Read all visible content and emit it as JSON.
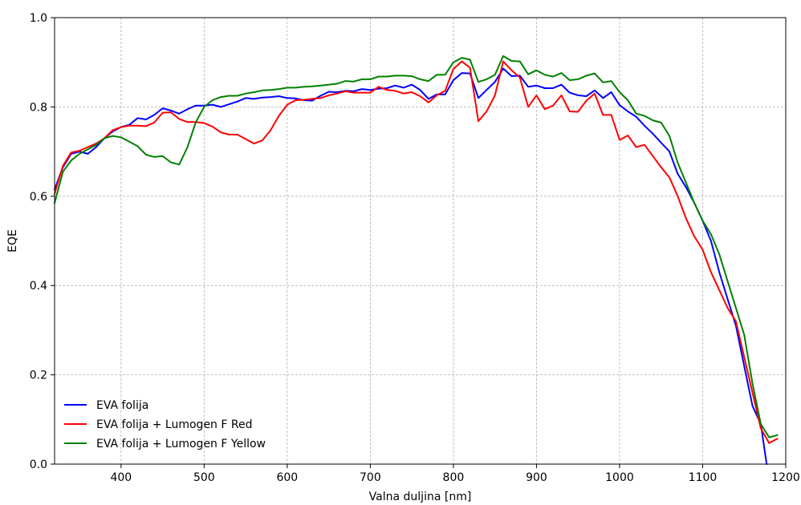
{
  "chart_data": {
    "type": "line",
    "title": "",
    "xlabel": "Valna duljina [nm]",
    "ylabel": "EQE",
    "xlim": [
      320,
      1200
    ],
    "ylim": [
      0.0,
      1.0
    ],
    "xticks": [
      400,
      500,
      600,
      700,
      800,
      900,
      1000,
      1100,
      1200
    ],
    "yticks": [
      0.0,
      0.2,
      0.4,
      0.6,
      0.8,
      1.0
    ],
    "xtick_labels": [
      "400",
      "500",
      "600",
      "700",
      "800",
      "900",
      "1000",
      "1100",
      "1200"
    ],
    "ytick_labels": [
      "0.0",
      "0.2",
      "0.4",
      "0.6",
      "0.8",
      "1.0"
    ],
    "grid": true,
    "legend_position": "bottom-left",
    "series": [
      {
        "name": "EVA folija",
        "color": "#0000ff",
        "x": [
          320,
          330,
          340,
          350,
          360,
          370,
          380,
          390,
          400,
          410,
          420,
          430,
          440,
          450,
          460,
          470,
          480,
          490,
          500,
          510,
          520,
          530,
          540,
          550,
          560,
          570,
          580,
          590,
          600,
          610,
          620,
          630,
          640,
          650,
          660,
          670,
          680,
          690,
          700,
          710,
          720,
          730,
          740,
          750,
          760,
          770,
          780,
          790,
          800,
          810,
          820,
          830,
          840,
          850,
          860,
          870,
          880,
          890,
          900,
          910,
          920,
          930,
          940,
          950,
          960,
          970,
          980,
          990,
          1000,
          1010,
          1020,
          1030,
          1040,
          1050,
          1060,
          1070,
          1080,
          1090,
          1100,
          1110,
          1120,
          1130,
          1140,
          1150,
          1160,
          1170,
          1177
        ],
        "y": [
          0.615,
          0.665,
          0.695,
          0.7,
          0.695,
          0.71,
          0.73,
          0.745,
          0.755,
          0.76,
          0.775,
          0.772,
          0.782,
          0.797,
          0.792,
          0.785,
          0.795,
          0.803,
          0.803,
          0.805,
          0.8,
          0.806,
          0.812,
          0.82,
          0.818,
          0.821,
          0.822,
          0.824,
          0.82,
          0.819,
          0.815,
          0.814,
          0.825,
          0.834,
          0.833,
          0.836,
          0.835,
          0.84,
          0.838,
          0.841,
          0.842,
          0.848,
          0.843,
          0.85,
          0.838,
          0.818,
          0.828,
          0.828,
          0.86,
          0.876,
          0.875,
          0.82,
          0.838,
          0.856,
          0.886,
          0.869,
          0.87,
          0.845,
          0.848,
          0.842,
          0.842,
          0.85,
          0.832,
          0.826,
          0.824,
          0.837,
          0.82,
          0.833,
          0.804,
          0.79,
          0.778,
          0.758,
          0.74,
          0.72,
          0.7,
          0.65,
          0.62,
          0.585,
          0.545,
          0.5,
          0.43,
          0.37,
          0.31,
          0.22,
          0.13,
          0.09,
          0.0
        ]
      },
      {
        "name": "EVA folija + Lumogen F Red",
        "color": "#ff0000",
        "x": [
          320,
          330,
          340,
          350,
          360,
          370,
          380,
          390,
          400,
          410,
          420,
          430,
          440,
          450,
          460,
          470,
          480,
          490,
          500,
          510,
          520,
          530,
          540,
          550,
          560,
          570,
          580,
          590,
          600,
          610,
          620,
          630,
          640,
          650,
          660,
          670,
          680,
          690,
          700,
          710,
          720,
          730,
          740,
          750,
          760,
          770,
          780,
          790,
          800,
          810,
          820,
          830,
          840,
          850,
          860,
          870,
          880,
          890,
          900,
          910,
          920,
          930,
          940,
          950,
          960,
          970,
          980,
          990,
          1000,
          1010,
          1020,
          1030,
          1040,
          1050,
          1060,
          1070,
          1080,
          1090,
          1100,
          1110,
          1120,
          1130,
          1140,
          1150,
          1160,
          1170,
          1180,
          1190
        ],
        "y": [
          0.605,
          0.668,
          0.698,
          0.702,
          0.71,
          0.718,
          0.73,
          0.748,
          0.755,
          0.758,
          0.758,
          0.757,
          0.765,
          0.787,
          0.788,
          0.773,
          0.766,
          0.766,
          0.764,
          0.756,
          0.743,
          0.738,
          0.738,
          0.728,
          0.718,
          0.725,
          0.748,
          0.78,
          0.805,
          0.815,
          0.816,
          0.818,
          0.82,
          0.826,
          0.83,
          0.835,
          0.832,
          0.832,
          0.832,
          0.845,
          0.838,
          0.836,
          0.83,
          0.833,
          0.824,
          0.81,
          0.826,
          0.836,
          0.885,
          0.902,
          0.888,
          0.768,
          0.79,
          0.826,
          0.902,
          0.882,
          0.866,
          0.8,
          0.826,
          0.795,
          0.803,
          0.826,
          0.79,
          0.789,
          0.814,
          0.83,
          0.782,
          0.782,
          0.726,
          0.736,
          0.71,
          0.715,
          0.69,
          0.665,
          0.642,
          0.6,
          0.55,
          0.51,
          0.48,
          0.43,
          0.39,
          0.35,
          0.32,
          0.24,
          0.16,
          0.08,
          0.047,
          0.057
        ]
      },
      {
        "name": "EVA folija + Lumogen F Yellow",
        "color": "#008000",
        "x": [
          320,
          330,
          340,
          350,
          360,
          370,
          380,
          390,
          400,
          410,
          420,
          430,
          440,
          450,
          460,
          470,
          480,
          490,
          500,
          510,
          520,
          530,
          540,
          550,
          560,
          570,
          580,
          590,
          600,
          610,
          620,
          630,
          640,
          650,
          660,
          670,
          680,
          690,
          700,
          710,
          720,
          730,
          740,
          750,
          760,
          770,
          780,
          790,
          800,
          810,
          820,
          830,
          840,
          850,
          860,
          870,
          880,
          890,
          900,
          910,
          920,
          930,
          940,
          950,
          960,
          970,
          980,
          990,
          1000,
          1010,
          1020,
          1030,
          1040,
          1050,
          1060,
          1070,
          1080,
          1090,
          1100,
          1110,
          1120,
          1130,
          1140,
          1150,
          1160,
          1170,
          1180,
          1190
        ],
        "y": [
          0.585,
          0.655,
          0.68,
          0.695,
          0.705,
          0.715,
          0.73,
          0.735,
          0.732,
          0.722,
          0.712,
          0.693,
          0.688,
          0.69,
          0.676,
          0.671,
          0.71,
          0.766,
          0.8,
          0.815,
          0.822,
          0.825,
          0.825,
          0.83,
          0.833,
          0.837,
          0.838,
          0.84,
          0.843,
          0.843,
          0.845,
          0.846,
          0.848,
          0.85,
          0.852,
          0.858,
          0.857,
          0.862,
          0.862,
          0.868,
          0.868,
          0.87,
          0.87,
          0.869,
          0.862,
          0.858,
          0.872,
          0.872,
          0.9,
          0.91,
          0.906,
          0.856,
          0.862,
          0.872,
          0.914,
          0.903,
          0.902,
          0.873,
          0.882,
          0.872,
          0.868,
          0.876,
          0.86,
          0.862,
          0.87,
          0.875,
          0.855,
          0.858,
          0.833,
          0.815,
          0.785,
          0.78,
          0.77,
          0.765,
          0.735,
          0.675,
          0.63,
          0.585,
          0.545,
          0.515,
          0.47,
          0.41,
          0.35,
          0.29,
          0.18,
          0.09,
          0.06,
          0.065
        ]
      }
    ]
  }
}
